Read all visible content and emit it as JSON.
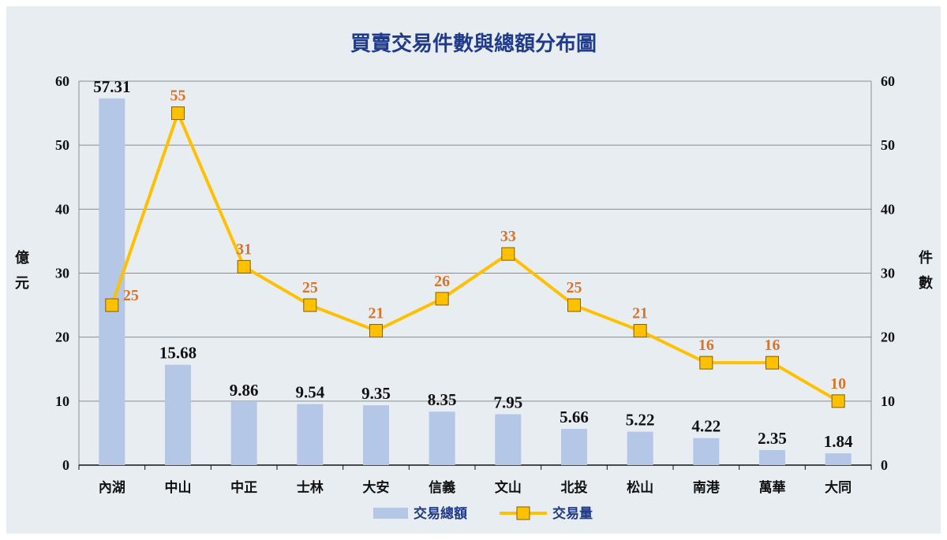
{
  "chart_data": {
    "type": "bar",
    "title": "買賣交易件數與總額分布圖",
    "categories": [
      "內湖",
      "中山",
      "中正",
      "士林",
      "大安",
      "信義",
      "文山",
      "北投",
      "松山",
      "南港",
      "萬華",
      "大同"
    ],
    "series": [
      {
        "name": "交易總額",
        "type": "bar",
        "axis": "left",
        "values": [
          57.31,
          15.68,
          9.86,
          9.54,
          9.35,
          8.35,
          7.95,
          5.66,
          5.22,
          4.22,
          2.35,
          1.84
        ],
        "labels": [
          "57.31",
          "15.68",
          "9.86",
          "9.54",
          "9.35",
          "8.35",
          "7.95",
          "5.66",
          "5.22",
          "4.22",
          "2.35",
          "1.84"
        ],
        "color": "#b4c7e7"
      },
      {
        "name": "交易量",
        "type": "line",
        "axis": "right",
        "values": [
          25,
          55,
          31,
          25,
          21,
          26,
          33,
          25,
          21,
          16,
          16,
          10
        ],
        "labels": [
          "25",
          "55",
          "31",
          "25",
          "21",
          "26",
          "33",
          "25",
          "21",
          "16",
          "16",
          "10"
        ],
        "color": "#ffc000",
        "label_color": "#d9742b"
      }
    ],
    "ylabel_left": "億元",
    "ylabel_right": "件數",
    "ylim_left": [
      0,
      60
    ],
    "ylim_right": [
      0,
      60
    ],
    "yticks_left": [
      "0",
      "10",
      "20",
      "30",
      "40",
      "50",
      "60"
    ],
    "yticks_right": [
      "0",
      "10",
      "20",
      "30",
      "40",
      "50",
      "60"
    ],
    "grid": true,
    "legend_position": "bottom",
    "colors": {
      "background": "#e8edf2",
      "title": "#1f3b8a",
      "gridline": "#8c8c8c"
    }
  }
}
